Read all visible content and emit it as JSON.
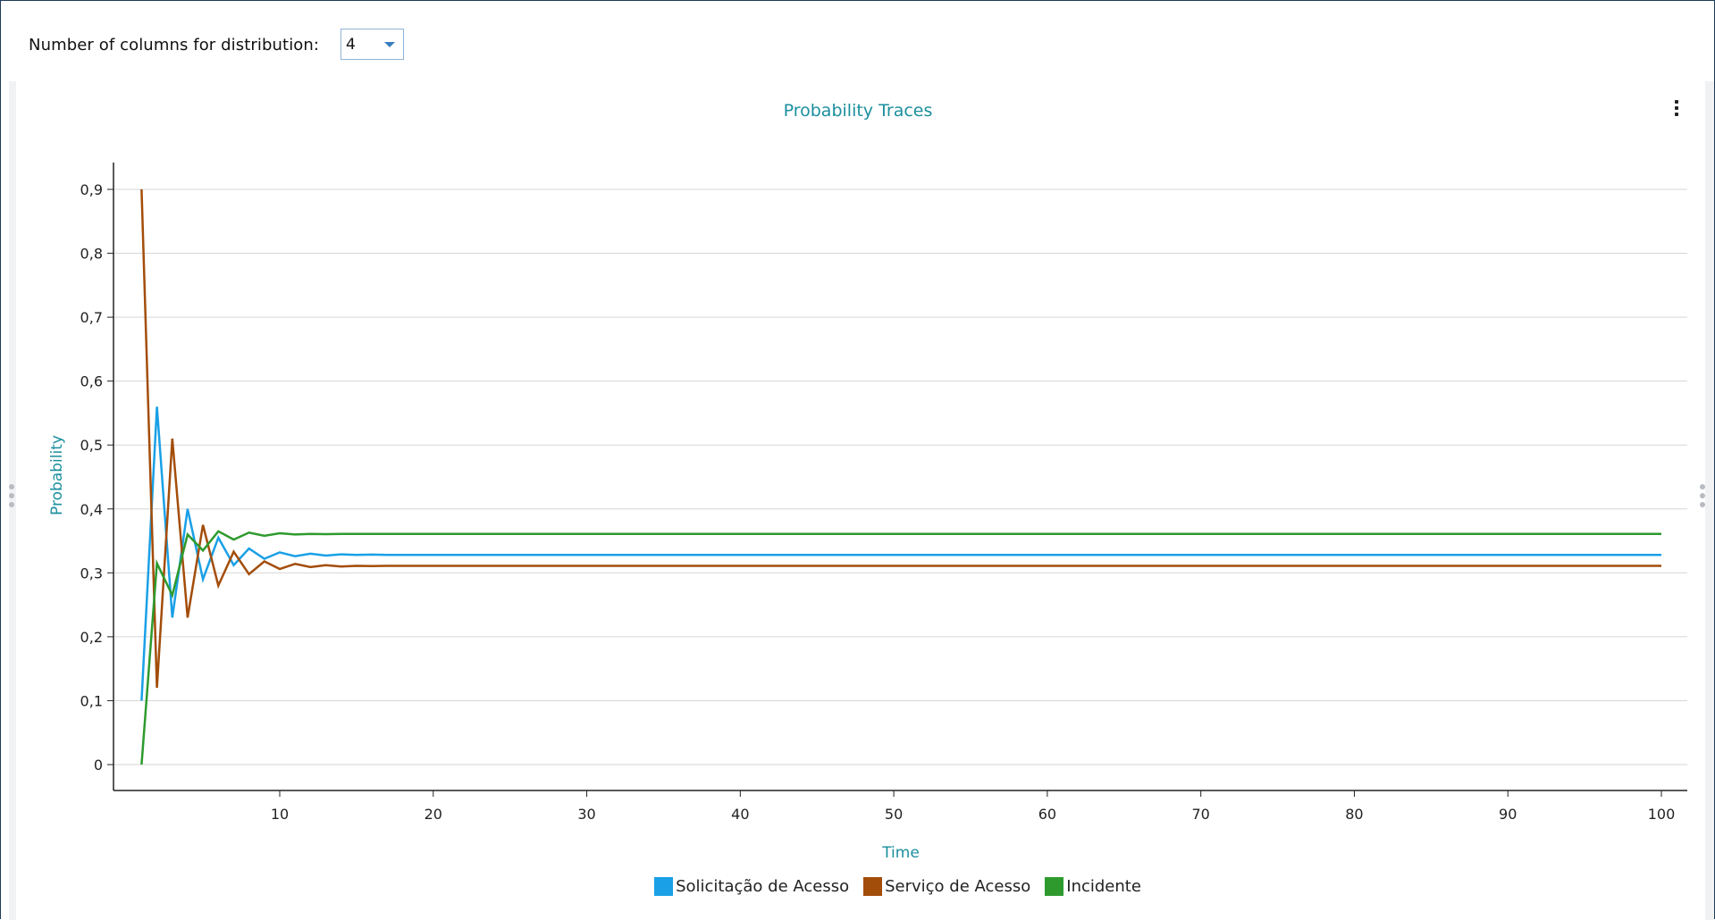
{
  "toolbar": {
    "label": "Number of columns for distribution:",
    "columns_value": "4"
  },
  "chart_data": {
    "type": "line",
    "title": "Probability Traces",
    "xlabel": "Time",
    "ylabel": "Probability",
    "xlim": [
      0,
      100
    ],
    "ylim": [
      0,
      0.9
    ],
    "x_ticks": [
      "10",
      "20",
      "30",
      "40",
      "50",
      "60",
      "70",
      "80",
      "90",
      "100"
    ],
    "y_ticks": [
      "0",
      "0,1",
      "0,2",
      "0,3",
      "0,4",
      "0,5",
      "0,6",
      "0,7",
      "0,8",
      "0,9"
    ],
    "grid": true,
    "legend": "bottom",
    "x": [
      1,
      2,
      3,
      4,
      5,
      6,
      7,
      8,
      9,
      10,
      11,
      12,
      13,
      14,
      15,
      16,
      17,
      18,
      19,
      20,
      21,
      22,
      23,
      24,
      25,
      26,
      27,
      28,
      29,
      30,
      31,
      32,
      33,
      34,
      35,
      36,
      37,
      38,
      39,
      40,
      41,
      42,
      43,
      44,
      45,
      46,
      47,
      48,
      49,
      50,
      51,
      52,
      53,
      54,
      55,
      56,
      57,
      58,
      59,
      60,
      61,
      62,
      63,
      64,
      65,
      66,
      67,
      68,
      69,
      70,
      71,
      72,
      73,
      74,
      75,
      76,
      77,
      78,
      79,
      80,
      81,
      82,
      83,
      84,
      85,
      86,
      87,
      88,
      89,
      90,
      91,
      92,
      93,
      94,
      95,
      96,
      97,
      98,
      99,
      100
    ],
    "series": [
      {
        "name": "Solicitação de Acesso",
        "color": "#1aa0e6",
        "values": [
          0.1,
          0.56,
          0.23,
          0.4,
          0.29,
          0.355,
          0.312,
          0.338,
          0.322,
          0.332,
          0.326,
          0.33,
          0.327,
          0.329,
          0.328,
          0.3285,
          0.328,
          0.328,
          0.328,
          0.328,
          0.328,
          0.328,
          0.328,
          0.328,
          0.328,
          0.328,
          0.328,
          0.328,
          0.328,
          0.328,
          0.328,
          0.328,
          0.328,
          0.328,
          0.328,
          0.328,
          0.328,
          0.328,
          0.328,
          0.328,
          0.328,
          0.328,
          0.328,
          0.328,
          0.328,
          0.328,
          0.328,
          0.328,
          0.328,
          0.328,
          0.328,
          0.328,
          0.328,
          0.328,
          0.328,
          0.328,
          0.328,
          0.328,
          0.328,
          0.328,
          0.328,
          0.328,
          0.328,
          0.328,
          0.328,
          0.328,
          0.328,
          0.328,
          0.328,
          0.328,
          0.328,
          0.328,
          0.328,
          0.328,
          0.328,
          0.328,
          0.328,
          0.328,
          0.328,
          0.328,
          0.328,
          0.328,
          0.328,
          0.328,
          0.328,
          0.328,
          0.328,
          0.328,
          0.328,
          0.328,
          0.328,
          0.328,
          0.328,
          0.328,
          0.328,
          0.328,
          0.328,
          0.328,
          0.328,
          0.328
        ]
      },
      {
        "name": "Serviço de Acesso",
        "color": "#a34d0a",
        "values": [
          0.9,
          0.12,
          0.51,
          0.23,
          0.375,
          0.28,
          0.333,
          0.298,
          0.318,
          0.306,
          0.314,
          0.309,
          0.312,
          0.31,
          0.311,
          0.3105,
          0.311,
          0.311,
          0.311,
          0.311,
          0.311,
          0.311,
          0.311,
          0.311,
          0.311,
          0.311,
          0.311,
          0.311,
          0.311,
          0.311,
          0.311,
          0.311,
          0.311,
          0.311,
          0.311,
          0.311,
          0.311,
          0.311,
          0.311,
          0.311,
          0.311,
          0.311,
          0.311,
          0.311,
          0.311,
          0.311,
          0.311,
          0.311,
          0.311,
          0.311,
          0.311,
          0.311,
          0.311,
          0.311,
          0.311,
          0.311,
          0.311,
          0.311,
          0.311,
          0.311,
          0.311,
          0.311,
          0.311,
          0.311,
          0.311,
          0.311,
          0.311,
          0.311,
          0.311,
          0.311,
          0.311,
          0.311,
          0.311,
          0.311,
          0.311,
          0.311,
          0.311,
          0.311,
          0.311,
          0.311,
          0.311,
          0.311,
          0.311,
          0.311,
          0.311,
          0.311,
          0.311,
          0.311,
          0.311,
          0.311,
          0.311,
          0.311,
          0.311,
          0.311,
          0.311,
          0.311,
          0.311,
          0.311,
          0.311,
          0.311
        ]
      },
      {
        "name": "Incidente",
        "color": "#2e9a2e",
        "values": [
          0.0,
          0.315,
          0.265,
          0.36,
          0.335,
          0.365,
          0.352,
          0.363,
          0.358,
          0.362,
          0.36,
          0.361,
          0.3605,
          0.361,
          0.361,
          0.361,
          0.361,
          0.361,
          0.361,
          0.361,
          0.361,
          0.361,
          0.361,
          0.361,
          0.361,
          0.361,
          0.361,
          0.361,
          0.361,
          0.361,
          0.361,
          0.361,
          0.361,
          0.361,
          0.361,
          0.361,
          0.361,
          0.361,
          0.361,
          0.361,
          0.361,
          0.361,
          0.361,
          0.361,
          0.361,
          0.361,
          0.361,
          0.361,
          0.361,
          0.361,
          0.361,
          0.361,
          0.361,
          0.361,
          0.361,
          0.361,
          0.361,
          0.361,
          0.361,
          0.361,
          0.361,
          0.361,
          0.361,
          0.361,
          0.361,
          0.361,
          0.361,
          0.361,
          0.361,
          0.361,
          0.361,
          0.361,
          0.361,
          0.361,
          0.361,
          0.361,
          0.361,
          0.361,
          0.361,
          0.361,
          0.361,
          0.361,
          0.361,
          0.361,
          0.361,
          0.361,
          0.361,
          0.361,
          0.361,
          0.361,
          0.361,
          0.361,
          0.361,
          0.361,
          0.361,
          0.361,
          0.361,
          0.361,
          0.361,
          0.361
        ]
      }
    ]
  },
  "menu": {
    "icon": "more-vertical-icon"
  }
}
